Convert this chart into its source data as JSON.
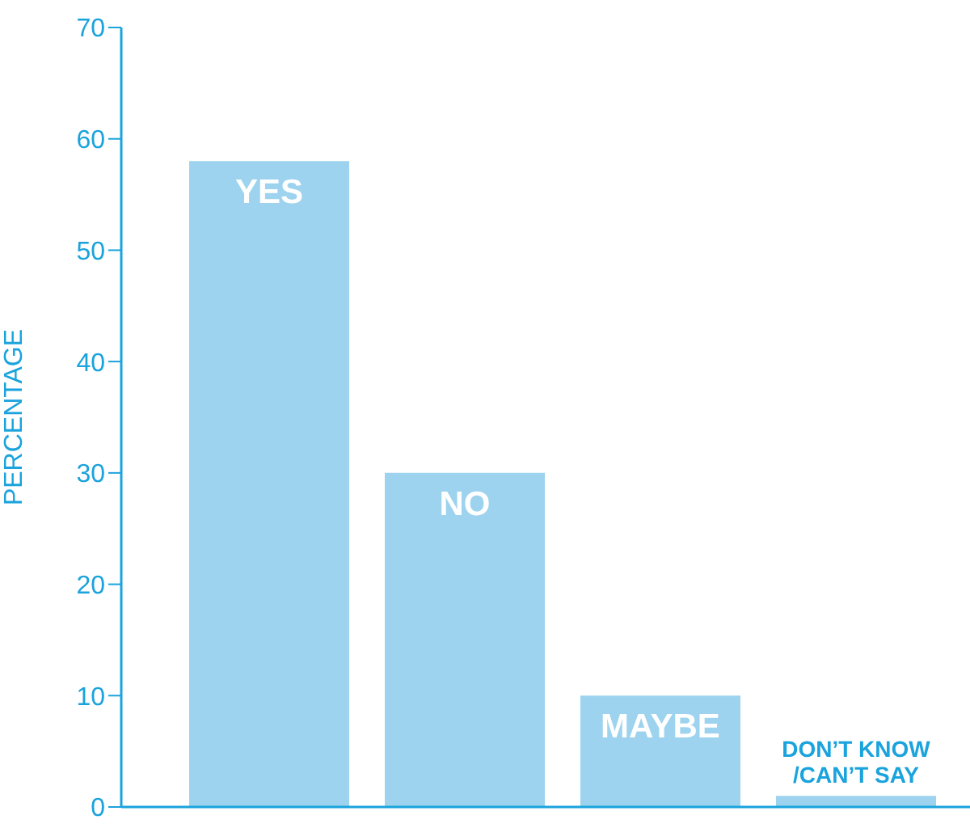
{
  "chart_data": {
    "type": "bar",
    "ylabel": "PERCENTAGE",
    "categories": [
      "YES",
      "NO",
      "MAYBE",
      "DON’T KNOW /CAN’T SAY"
    ],
    "values": [
      58,
      30,
      10,
      1
    ],
    "color": "#9dd3ee",
    "ylim": [
      0,
      70
    ],
    "yticks": [
      0,
      10,
      20,
      30,
      40,
      50,
      60,
      70
    ],
    "grid": false,
    "tick_labels": "y"
  }
}
